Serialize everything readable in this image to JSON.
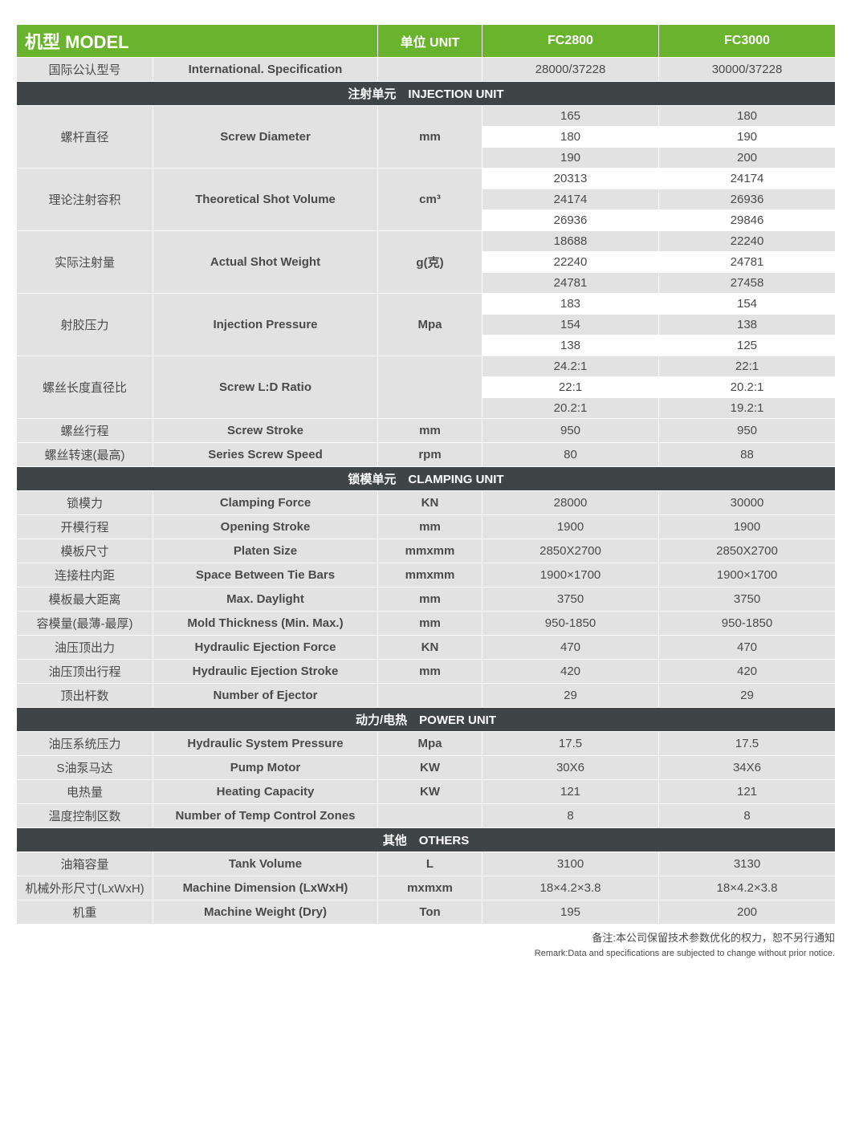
{
  "colors": {
    "green": "#6ab42d",
    "dark": "#3f4547",
    "grey": "#e2e2e2",
    "white": "#ffffff",
    "text": "#4a4a4a"
  },
  "header": {
    "model_label": "机型 MODEL",
    "unit_label": "单位 UNIT",
    "model1": "FC2800",
    "model2": "FC3000",
    "intl_cn": "国际公认型号",
    "intl_en": "International. Specification",
    "intl_m1": "28000/37228",
    "intl_m2": "30000/37228"
  },
  "sections": {
    "injection": "注射单元　INJECTION UNIT",
    "clamping": "锁模单元　CLAMPING UNIT",
    "power": "动力/电热　POWER  UNIT",
    "others": "其他　OTHERS"
  },
  "injection": {
    "screw_diameter": {
      "cn": "螺杆直径",
      "en": "Screw Diameter",
      "unit": "mm",
      "m1": [
        "165",
        "180",
        "190"
      ],
      "m2": [
        "180",
        "190",
        "200"
      ]
    },
    "shot_volume": {
      "cn": "理论注射容积",
      "en": "Theoretical Shot Volume",
      "unit": "cm³",
      "m1": [
        "20313",
        "24174",
        "26936"
      ],
      "m2": [
        "24174",
        "26936",
        "29846"
      ]
    },
    "shot_weight": {
      "cn": "实际注射量",
      "en": "Actual Shot Weight",
      "unit": "g(克)",
      "m1": [
        "18688",
        "22240",
        "24781"
      ],
      "m2": [
        "22240",
        "24781",
        "27458"
      ]
    },
    "inj_pressure": {
      "cn": "射胶压力",
      "en": "Injection Pressure",
      "unit": "Mpa",
      "m1": [
        "183",
        "154",
        "138"
      ],
      "m2": [
        "154",
        "138",
        "125"
      ]
    },
    "ld_ratio": {
      "cn": "螺丝长度直径比",
      "en": "Screw L:D Ratio",
      "unit": "",
      "m1": [
        "24.2:1",
        "22:1",
        "20.2:1"
      ],
      "m2": [
        "22:1",
        "20.2:1",
        "19.2:1"
      ]
    },
    "screw_stroke": {
      "cn": "螺丝行程",
      "en": "Screw Stroke",
      "unit": "mm",
      "m1": "950",
      "m2": "950"
    },
    "screw_speed": {
      "cn": "螺丝转速(最高)",
      "en": "Series Screw Speed",
      "unit": "rpm",
      "m1": "80",
      "m2": "88"
    }
  },
  "clamping": {
    "force": {
      "cn": "锁模力",
      "en": "Clamping Force",
      "unit": "KN",
      "m1": "28000",
      "m2": "30000"
    },
    "opening": {
      "cn": "开模行程",
      "en": "Opening Stroke",
      "unit": "mm",
      "m1": "1900",
      "m2": "1900"
    },
    "platen": {
      "cn": "模板尺寸",
      "en": "Platen Size",
      "unit": "mmxmm",
      "m1": "2850X2700",
      "m2": "2850X2700"
    },
    "tiebars": {
      "cn": "连接柱内距",
      "en": "Space Between Tie Bars",
      "unit": "mmxmm",
      "m1": "1900×1700",
      "m2": "1900×1700"
    },
    "daylight": {
      "cn": "模板最大距离",
      "en": "Max. Daylight",
      "unit": "mm",
      "m1": "3750",
      "m2": "3750"
    },
    "mold_thick": {
      "cn": "容模量(最薄-最厚)",
      "en": "Mold Thickness (Min. Max.)",
      "unit": "mm",
      "m1": "950-1850",
      "m2": "950-1850"
    },
    "ej_force": {
      "cn": "油压顶出力",
      "en": "Hydraulic Ejection Force",
      "unit": "KN",
      "m1": "470",
      "m2": "470"
    },
    "ej_stroke": {
      "cn": "油压顶出行程",
      "en": "Hydraulic Ejection Stroke",
      "unit": "mm",
      "m1": "420",
      "m2": "420"
    },
    "ej_num": {
      "cn": "顶出杆数",
      "en": "Number of Ejector",
      "unit": "",
      "m1": "29",
      "m2": "29"
    }
  },
  "power": {
    "hyd_pressure": {
      "cn": "油压系统压力",
      "en": "Hydraulic System Pressure",
      "unit": "Mpa",
      "m1": "17.5",
      "m2": "17.5"
    },
    "pump_motor": {
      "cn": "S油泵马达",
      "en": "Pump Motor",
      "unit": "KW",
      "m1": "30X6",
      "m2": "34X6"
    },
    "heating": {
      "cn": "电热量",
      "en": "Heating Capacity",
      "unit": "KW",
      "m1": "121",
      "m2": "121"
    },
    "temp_zones": {
      "cn": "温度控制区数",
      "en": "Number of Temp Control Zones",
      "unit": "",
      "m1": "8",
      "m2": "8"
    }
  },
  "others": {
    "tank": {
      "cn": "油箱容量",
      "en": "Tank Volume",
      "unit": "L",
      "m1": "3100",
      "m2": "3130"
    },
    "dimension": {
      "cn": "机械外形尺寸(LxWxH)",
      "en": "Machine Dimension (LxWxH)",
      "unit": "mxmxm",
      "m1": "18×4.2×3.8",
      "m2": "18×4.2×3.8"
    },
    "weight": {
      "cn": "机重",
      "en": "Machine Weight (Dry)",
      "unit": "Ton",
      "m1": "195",
      "m2": "200"
    }
  },
  "footnote": {
    "cn": "备注:本公司保留技术参数优化的权力，恕不另行通知",
    "en": "Remark:Data and specifications are subjected to change without prior notice."
  }
}
